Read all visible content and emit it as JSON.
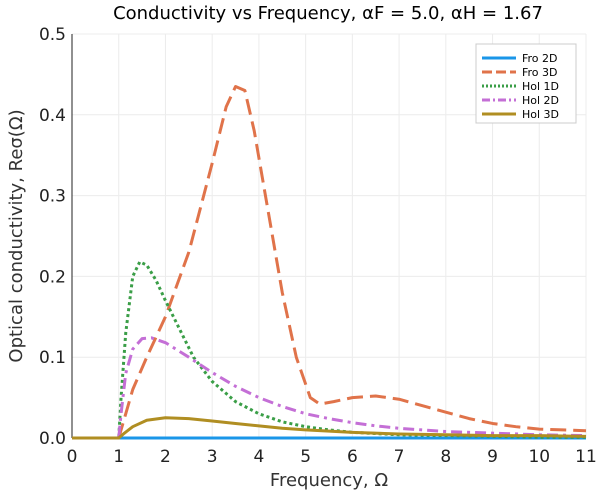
{
  "chart_data": {
    "type": "line",
    "title": "Conductivity vs Frequency, αF = 5.0, αH = 1.67",
    "xlabel": "Frequency, Ω",
    "ylabel": "Optical conductivity, Reσ(Ω)",
    "xlim": [
      0,
      11
    ],
    "ylim": [
      0,
      0.5
    ],
    "xticks": [
      "0",
      "1",
      "2",
      "3",
      "4",
      "5",
      "6",
      "7",
      "8",
      "9",
      "10",
      "11"
    ],
    "yticks": [
      "0.0",
      "0.1",
      "0.2",
      "0.3",
      "0.4",
      "0.5"
    ],
    "grid": true,
    "legend_position": "top-right",
    "series": [
      {
        "name": "Fro 2D",
        "color": "#1a96e8",
        "dash": "solid",
        "x": [
          0,
          1,
          2,
          3,
          4,
          5,
          6,
          7,
          8,
          9,
          10,
          11
        ],
        "y": [
          0,
          0,
          0,
          0,
          0,
          0,
          0,
          0,
          0,
          0,
          0,
          0
        ]
      },
      {
        "name": "Fro 3D",
        "color": "#e0734a",
        "dash": "dash",
        "x": [
          0,
          0.5,
          1.0,
          1.1,
          1.3,
          1.6,
          2.0,
          2.5,
          3.0,
          3.3,
          3.5,
          3.7,
          3.9,
          4.2,
          4.5,
          4.8,
          5.1,
          5.3,
          5.6,
          6.0,
          6.5,
          7.0,
          7.5,
          8.0,
          8.5,
          9.0,
          9.5,
          10.0,
          10.5,
          11.0
        ],
        "y": [
          0,
          0,
          0,
          0.02,
          0.06,
          0.1,
          0.15,
          0.23,
          0.34,
          0.41,
          0.435,
          0.43,
          0.38,
          0.28,
          0.18,
          0.1,
          0.05,
          0.042,
          0.045,
          0.05,
          0.052,
          0.048,
          0.04,
          0.032,
          0.024,
          0.018,
          0.014,
          0.011,
          0.01,
          0.009
        ]
      },
      {
        "name": "Hol 1D",
        "color": "#3a9e47",
        "dash": "dot",
        "x": [
          0,
          0.5,
          1.0,
          1.05,
          1.15,
          1.3,
          1.45,
          1.6,
          1.8,
          2.0,
          2.3,
          2.6,
          3.0,
          3.5,
          4.0,
          4.5,
          5.0,
          5.5,
          6.0,
          7.0,
          8.0,
          9.0,
          10.0,
          11.0
        ],
        "y": [
          0,
          0,
          0,
          0.05,
          0.13,
          0.2,
          0.218,
          0.214,
          0.195,
          0.17,
          0.135,
          0.1,
          0.07,
          0.045,
          0.03,
          0.02,
          0.014,
          0.01,
          0.007,
          0.004,
          0.003,
          0.002,
          0.001,
          0.001
        ]
      },
      {
        "name": "Hol 2D",
        "color": "#c46fd6",
        "dash": "dashdot",
        "x": [
          0,
          0.5,
          1.0,
          1.05,
          1.15,
          1.3,
          1.5,
          1.7,
          2.0,
          2.5,
          3.0,
          3.5,
          4.0,
          4.5,
          5.0,
          5.5,
          6.0,
          6.5,
          7.0,
          8.0,
          9.0,
          10.0,
          11.0
        ],
        "y": [
          0,
          0,
          0,
          0.03,
          0.08,
          0.11,
          0.123,
          0.124,
          0.118,
          0.1,
          0.081,
          0.064,
          0.05,
          0.039,
          0.03,
          0.024,
          0.019,
          0.015,
          0.012,
          0.008,
          0.006,
          0.004,
          0.003
        ]
      },
      {
        "name": "Hol 3D",
        "color": "#b08e22",
        "dash": "solid",
        "x": [
          0,
          0.5,
          1.0,
          1.1,
          1.3,
          1.6,
          2.0,
          2.5,
          3.0,
          3.5,
          4.0,
          4.5,
          5.0,
          6.0,
          7.0,
          8.0,
          9.0,
          10.0,
          11.0
        ],
        "y": [
          0,
          0,
          0,
          0.005,
          0.014,
          0.022,
          0.025,
          0.024,
          0.021,
          0.018,
          0.015,
          0.012,
          0.01,
          0.007,
          0.005,
          0.004,
          0.003,
          0.003,
          0.002
        ]
      }
    ]
  }
}
